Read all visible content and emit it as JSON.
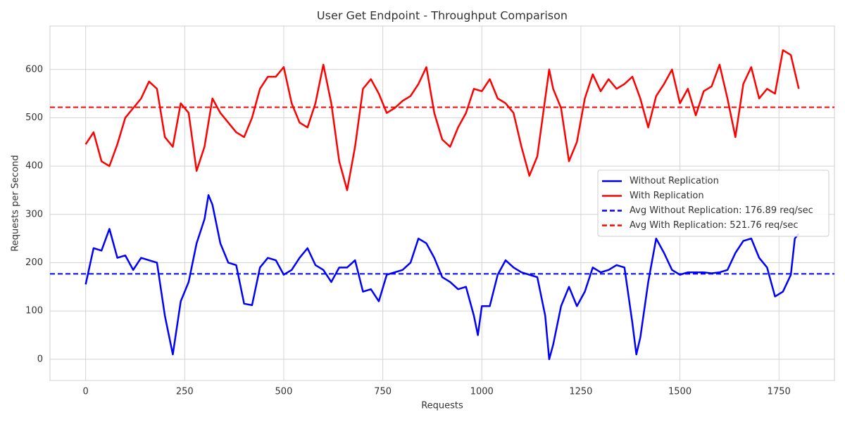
{
  "chart_data": {
    "type": "line",
    "title": "User Get Endpoint - Throughput Comparison",
    "xlabel": "Requests",
    "ylabel": "Requests per Second",
    "xlim": [
      -90,
      1890
    ],
    "ylim": [
      -44,
      690
    ],
    "xticks": [
      0,
      250,
      500,
      750,
      1000,
      1250,
      1500,
      1750
    ],
    "yticks": [
      0,
      100,
      200,
      300,
      400,
      500,
      600
    ],
    "grid": true,
    "legend": "center right",
    "series": [
      {
        "name": "Without Replication",
        "color": "#0000ff",
        "x": [
          0,
          20,
          40,
          60,
          80,
          100,
          120,
          140,
          160,
          180,
          200,
          210,
          220,
          240,
          260,
          280,
          300,
          310,
          320,
          340,
          360,
          380,
          400,
          420,
          440,
          460,
          480,
          500,
          520,
          540,
          560,
          580,
          600,
          620,
          640,
          660,
          680,
          700,
          720,
          740,
          760,
          780,
          800,
          820,
          840,
          860,
          880,
          900,
          920,
          940,
          960,
          970,
          980,
          990,
          1000,
          1020,
          1040,
          1060,
          1080,
          1100,
          1120,
          1140,
          1160,
          1170,
          1180,
          1200,
          1220,
          1240,
          1260,
          1280,
          1300,
          1320,
          1340,
          1360,
          1380,
          1390,
          1400,
          1420,
          1440,
          1460,
          1480,
          1500,
          1520,
          1540,
          1560,
          1580,
          1600,
          1620,
          1640,
          1660,
          1680,
          1700,
          1720,
          1740,
          1760,
          1780,
          1790,
          1800
        ],
        "values": [
          155,
          230,
          225,
          270,
          210,
          215,
          185,
          210,
          205,
          200,
          90,
          50,
          10,
          120,
          160,
          240,
          290,
          340,
          320,
          240,
          200,
          195,
          115,
          112,
          190,
          210,
          205,
          175,
          185,
          210,
          230,
          195,
          185,
          160,
          190,
          190,
          205,
          140,
          145,
          120,
          175,
          180,
          185,
          200,
          250,
          240,
          210,
          170,
          160,
          145,
          150,
          120,
          90,
          50,
          110,
          110,
          175,
          205,
          190,
          180,
          175,
          170,
          90,
          0,
          30,
          110,
          150,
          110,
          140,
          190,
          180,
          185,
          195,
          190,
          75,
          10,
          45,
          160,
          250,
          220,
          185,
          175,
          180,
          180,
          180,
          178,
          180,
          185,
          220,
          245,
          250,
          210,
          190,
          130,
          140,
          175,
          250,
          260
        ]
      },
      {
        "name": "With Replication",
        "color": "#ff0000",
        "x": [
          0,
          20,
          40,
          60,
          80,
          100,
          120,
          140,
          160,
          180,
          200,
          220,
          240,
          260,
          280,
          300,
          320,
          340,
          360,
          380,
          400,
          420,
          440,
          460,
          480,
          500,
          520,
          540,
          560,
          580,
          600,
          620,
          640,
          660,
          680,
          700,
          720,
          740,
          760,
          780,
          800,
          820,
          840,
          860,
          880,
          900,
          920,
          940,
          960,
          980,
          1000,
          1020,
          1040,
          1060,
          1080,
          1100,
          1120,
          1140,
          1160,
          1170,
          1180,
          1200,
          1220,
          1240,
          1260,
          1280,
          1300,
          1320,
          1340,
          1360,
          1380,
          1400,
          1420,
          1440,
          1460,
          1480,
          1500,
          1520,
          1540,
          1560,
          1580,
          1600,
          1620,
          1640,
          1660,
          1680,
          1700,
          1720,
          1740,
          1760,
          1780,
          1800
        ],
        "values": [
          445,
          470,
          410,
          400,
          445,
          500,
          520,
          540,
          575,
          560,
          460,
          440,
          530,
          510,
          390,
          440,
          540,
          510,
          490,
          470,
          460,
          500,
          560,
          585,
          585,
          605,
          530,
          490,
          480,
          530,
          610,
          530,
          410,
          350,
          440,
          560,
          580,
          550,
          510,
          520,
          535,
          545,
          570,
          605,
          510,
          455,
          440,
          480,
          510,
          560,
          555,
          580,
          540,
          530,
          510,
          440,
          380,
          420,
          540,
          600,
          560,
          520,
          410,
          450,
          540,
          590,
          555,
          580,
          560,
          570,
          585,
          540,
          480,
          545,
          570,
          600,
          530,
          560,
          505,
          555,
          565,
          610,
          540,
          460,
          570,
          605,
          540,
          560,
          550,
          640,
          630,
          560
        ]
      }
    ],
    "hlines": [
      {
        "name": "Avg Without Replication: 176.89 req/sec",
        "value": 176.89,
        "color": "#0000ff"
      },
      {
        "name": "Avg With Replication: 521.76 req/sec",
        "value": 521.76,
        "color": "#ff0000"
      }
    ]
  }
}
